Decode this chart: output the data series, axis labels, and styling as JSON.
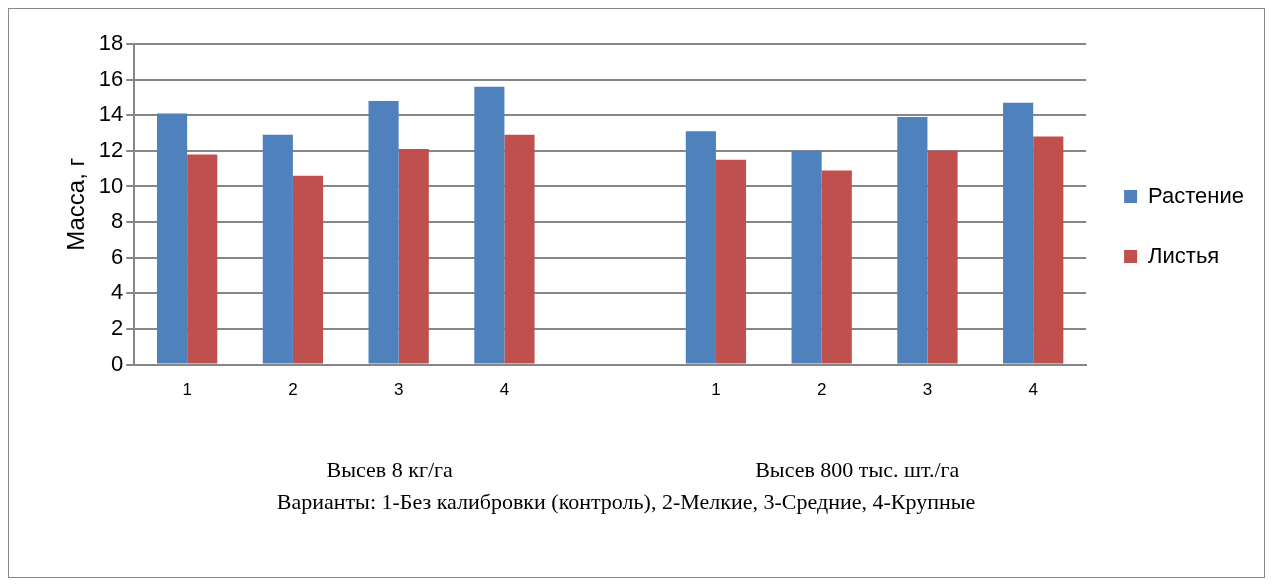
{
  "chart_data": {
    "type": "bar",
    "ylabel": "Масса, г",
    "xlabel": "Варианты: 1-Без калибровки (контроль), 2-Мелкие, 3-Средние, 4-Крупные",
    "annotations": [
      "Высев 8 кг/га",
      "Высев 800 тыс. шт./га"
    ],
    "categories": [
      "1",
      "2",
      "3",
      "4",
      null,
      "1",
      "2",
      "3",
      "4"
    ],
    "series": [
      {
        "name": "Растение",
        "color": "#4f81bd",
        "values": [
          14.1,
          12.9,
          14.8,
          15.6,
          null,
          13.1,
          12.0,
          13.9,
          14.7
        ]
      },
      {
        "name": "Листья",
        "color": "#c0504d",
        "values": [
          11.8,
          10.6,
          12.1,
          12.9,
          null,
          11.5,
          10.9,
          12.0,
          12.8
        ]
      }
    ],
    "ylim": [
      0,
      18
    ],
    "yticks": [
      0,
      2,
      4,
      6,
      8,
      10,
      12,
      14,
      16,
      18
    ],
    "grid": "y",
    "legend": "right"
  }
}
